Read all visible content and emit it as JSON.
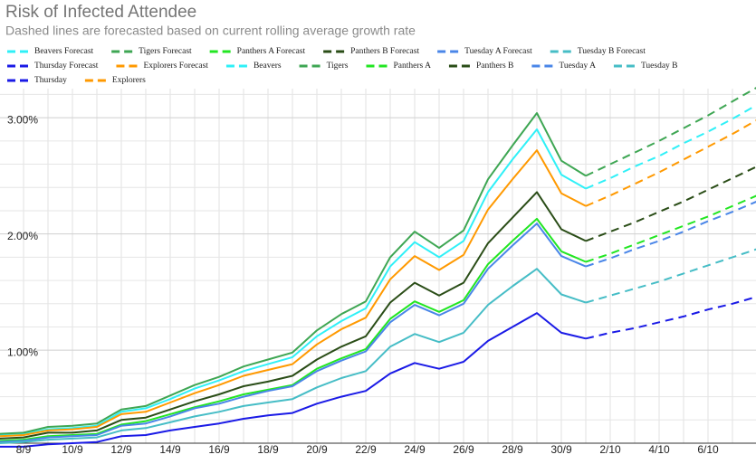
{
  "chart_data": {
    "type": "line",
    "title": "Risk of Infected Attendee",
    "subtitle": "Dashed lines are forecasted based on current rolling average growth rate",
    "categories": [
      null,
      "8/9",
      null,
      "10/9",
      null,
      "12/9",
      null,
      "14/9",
      null,
      "16/9",
      null,
      "18/9",
      null,
      "20/9",
      null,
      "22/9",
      null,
      "24/9",
      null,
      "26/9",
      null,
      "28/9",
      null,
      "30/9",
      null,
      "2/10",
      null,
      "4/10",
      null,
      "6/10",
      null,
      null
    ],
    "ylim": [
      0.2,
      3.25
    ],
    "yticks": [
      {
        "value": 1,
        "label": "1.00%"
      },
      {
        "value": 2,
        "label": "2.00%"
      },
      {
        "value": 3,
        "label": "3.00%"
      }
    ],
    "minor_yticks": [
      0.4,
      0.6,
      0.8,
      1.2,
      1.4,
      1.6,
      1.8,
      2.2,
      2.4,
      2.6,
      2.8,
      3.2
    ],
    "grid": true,
    "legend": "top",
    "series": [
      {
        "name": "Beavers Forecast",
        "color": "#2ff0f7",
        "dashed": true,
        "values": [
          null,
          null,
          null,
          null,
          null,
          null,
          null,
          null,
          null,
          null,
          null,
          null,
          null,
          null,
          null,
          null,
          null,
          null,
          null,
          null,
          null,
          null,
          null,
          null,
          2.39,
          2.48,
          2.58,
          2.67,
          2.78,
          2.88,
          2.99,
          3.11
        ]
      },
      {
        "name": "Tigers Forecast",
        "color": "#3ea653",
        "dashed": true,
        "values": [
          null,
          null,
          null,
          null,
          null,
          null,
          null,
          null,
          null,
          null,
          null,
          null,
          null,
          null,
          null,
          null,
          null,
          null,
          null,
          null,
          null,
          null,
          null,
          null,
          2.5,
          2.6,
          2.7,
          2.8,
          2.91,
          3.02,
          3.14,
          3.26
        ]
      },
      {
        "name": "Panthers A Forecast",
        "color": "#22e622",
        "dashed": true,
        "values": [
          null,
          null,
          null,
          null,
          null,
          null,
          null,
          null,
          null,
          null,
          null,
          null,
          null,
          null,
          null,
          null,
          null,
          null,
          null,
          null,
          null,
          null,
          null,
          null,
          1.76,
          1.83,
          1.91,
          1.99,
          2.07,
          2.15,
          2.24,
          2.33
        ]
      },
      {
        "name": "Panthers B Forecast",
        "color": "#2a4d17",
        "dashed": true,
        "values": [
          null,
          null,
          null,
          null,
          null,
          null,
          null,
          null,
          null,
          null,
          null,
          null,
          null,
          null,
          null,
          null,
          null,
          null,
          null,
          null,
          null,
          null,
          null,
          null,
          1.94,
          2.02,
          2.1,
          2.19,
          2.28,
          2.38,
          2.48,
          2.58
        ]
      },
      {
        "name": "Tuesday A Forecast",
        "color": "#4a86e8",
        "dashed": true,
        "values": [
          null,
          null,
          null,
          null,
          null,
          null,
          null,
          null,
          null,
          null,
          null,
          null,
          null,
          null,
          null,
          null,
          null,
          null,
          null,
          null,
          null,
          null,
          null,
          null,
          1.72,
          1.79,
          1.87,
          1.94,
          2.02,
          2.11,
          2.19,
          2.28
        ]
      },
      {
        "name": "Tuesday B Forecast",
        "color": "#46bdc6",
        "dashed": true,
        "values": [
          null,
          null,
          null,
          null,
          null,
          null,
          null,
          null,
          null,
          null,
          null,
          null,
          null,
          null,
          null,
          null,
          null,
          null,
          null,
          null,
          null,
          null,
          null,
          null,
          1.41,
          1.47,
          1.53,
          1.59,
          1.66,
          1.73,
          1.8,
          1.87
        ]
      },
      {
        "name": "Thursday Forecast",
        "color": "#1a1ae6",
        "dashed": true,
        "values": [
          null,
          null,
          null,
          null,
          null,
          null,
          null,
          null,
          null,
          null,
          null,
          null,
          null,
          null,
          null,
          null,
          null,
          null,
          null,
          null,
          null,
          null,
          null,
          null,
          1.1,
          1.15,
          1.19,
          1.24,
          1.29,
          1.35,
          1.4,
          1.46
        ]
      },
      {
        "name": "Explorers Forecast",
        "color": "#ff9900",
        "dashed": true,
        "values": [
          null,
          null,
          null,
          null,
          null,
          null,
          null,
          null,
          null,
          null,
          null,
          null,
          null,
          null,
          null,
          null,
          null,
          null,
          null,
          null,
          null,
          null,
          null,
          null,
          2.24,
          2.33,
          2.43,
          2.53,
          2.64,
          2.75,
          2.86,
          2.98
        ]
      },
      {
        "name": "Beavers",
        "color": "#2ff0f7",
        "dashed": false,
        "values": [
          0.27,
          0.28,
          0.32,
          0.33,
          0.35,
          0.47,
          0.5,
          0.58,
          0.67,
          0.74,
          0.82,
          0.88,
          0.94,
          1.12,
          1.25,
          1.36,
          1.72,
          1.93,
          1.8,
          1.94,
          2.36,
          2.64,
          2.9,
          2.51,
          2.39,
          null,
          null,
          null,
          null,
          null,
          null,
          null
        ]
      },
      {
        "name": "Tigers",
        "color": "#3ea653",
        "dashed": false,
        "values": [
          0.28,
          0.29,
          0.34,
          0.35,
          0.37,
          0.49,
          0.52,
          0.61,
          0.7,
          0.77,
          0.86,
          0.92,
          0.98,
          1.17,
          1.31,
          1.42,
          1.8,
          2.02,
          1.88,
          2.03,
          2.47,
          2.76,
          3.04,
          2.63,
          2.5,
          null,
          null,
          null,
          null,
          null,
          null,
          null
        ]
      },
      {
        "name": "Panthers A",
        "color": "#22e622",
        "dashed": false,
        "values": [
          0.22,
          0.23,
          0.26,
          0.27,
          0.28,
          0.36,
          0.39,
          0.45,
          0.51,
          0.56,
          0.62,
          0.66,
          0.7,
          0.84,
          0.93,
          1.01,
          1.27,
          1.42,
          1.33,
          1.43,
          1.74,
          1.94,
          2.13,
          1.85,
          1.76,
          null,
          null,
          null,
          null,
          null,
          null,
          null
        ]
      },
      {
        "name": "Panthers B",
        "color": "#2a4d17",
        "dashed": false,
        "values": [
          0.24,
          0.25,
          0.29,
          0.29,
          0.31,
          0.4,
          0.42,
          0.49,
          0.56,
          0.62,
          0.69,
          0.73,
          0.78,
          0.92,
          1.03,
          1.12,
          1.41,
          1.58,
          1.47,
          1.58,
          1.92,
          2.14,
          2.36,
          2.04,
          1.94,
          null,
          null,
          null,
          null,
          null,
          null,
          null
        ]
      },
      {
        "name": "Tuesday A",
        "color": "#4a86e8",
        "dashed": false,
        "values": [
          0.21,
          0.22,
          0.25,
          0.26,
          0.27,
          0.35,
          0.37,
          0.43,
          0.5,
          0.54,
          0.6,
          0.65,
          0.69,
          0.82,
          0.91,
          0.99,
          1.24,
          1.39,
          1.3,
          1.4,
          1.7,
          1.9,
          2.09,
          1.81,
          1.72,
          null,
          null,
          null,
          null,
          null,
          null,
          null
        ]
      },
      {
        "name": "Tuesday B",
        "color": "#46bdc6",
        "dashed": false,
        "values": [
          0.2,
          0.21,
          0.23,
          0.24,
          0.25,
          0.31,
          0.33,
          0.38,
          0.43,
          0.47,
          0.52,
          0.55,
          0.58,
          0.68,
          0.76,
          0.82,
          1.03,
          1.14,
          1.07,
          1.15,
          1.39,
          1.55,
          1.7,
          1.48,
          1.41,
          null,
          null,
          null,
          null,
          null,
          null,
          null
        ]
      },
      {
        "name": "Thursday",
        "color": "#1a1ae6",
        "dashed": false,
        "values": [
          0.17,
          0.17,
          0.19,
          0.2,
          0.21,
          0.26,
          0.27,
          0.31,
          0.34,
          0.37,
          0.41,
          0.44,
          0.46,
          0.54,
          0.6,
          0.65,
          0.8,
          0.89,
          0.84,
          0.9,
          1.08,
          1.2,
          1.32,
          1.15,
          1.1,
          null,
          null,
          null,
          null,
          null,
          null,
          null
        ]
      },
      {
        "name": "Explorers",
        "color": "#ff9900",
        "dashed": false,
        "values": [
          0.26,
          0.27,
          0.31,
          0.32,
          0.34,
          0.45,
          0.47,
          0.55,
          0.63,
          0.7,
          0.78,
          0.83,
          0.88,
          1.05,
          1.18,
          1.28,
          1.61,
          1.81,
          1.69,
          1.82,
          2.21,
          2.47,
          2.72,
          2.35,
          2.24,
          null,
          null,
          null,
          null,
          null,
          null,
          null
        ]
      }
    ]
  }
}
